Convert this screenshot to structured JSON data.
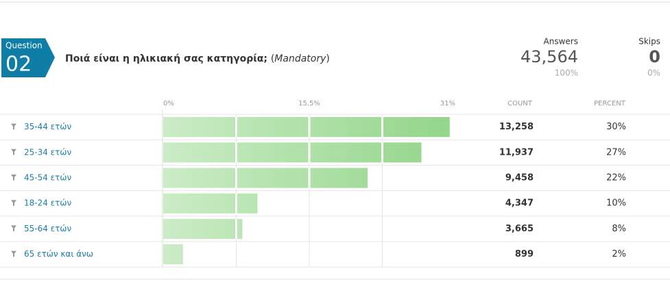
{
  "question": {
    "label": "Question",
    "number": "02",
    "text": "Ποιά είναι η ηλικιακή σας κατηγορία;",
    "note_open": "(",
    "note": "Mandatory",
    "note_close": ")"
  },
  "summary": {
    "answers_label": "Answers",
    "answers": "43,564",
    "answers_percent": "100%",
    "skips_label": "Skips",
    "skips": "0",
    "skips_percent": "0%"
  },
  "chart_data": {
    "type": "bar",
    "orientation": "horizontal",
    "categories": [
      "35-44 ετών",
      "25-34 ετών",
      "45-54 ετών",
      "18-24 ετών",
      "55-64 ετών",
      "65 ετών και άνω"
    ],
    "values": [
      30.4,
      27.4,
      21.7,
      10.0,
      8.4,
      2.1
    ],
    "value_labels": [
      "30%",
      "27%",
      "22%",
      "10%",
      "8%",
      "2%"
    ],
    "counts": [
      "13,258",
      "11,937",
      "9,458",
      "4,347",
      "3,665",
      "899"
    ],
    "count_header": "COUNT",
    "percent_header": "PERCENT",
    "xlim": [
      0,
      31
    ],
    "xticks": [
      {
        "value": 0,
        "label": "0%"
      },
      {
        "value": 15.5,
        "label": "15.5%"
      },
      {
        "value": 31,
        "label": "31%"
      }
    ],
    "xgrid": [
      7.75,
      15.5,
      23.25
    ],
    "color_start": "#cbecc6",
    "color_end": "#92d589"
  }
}
